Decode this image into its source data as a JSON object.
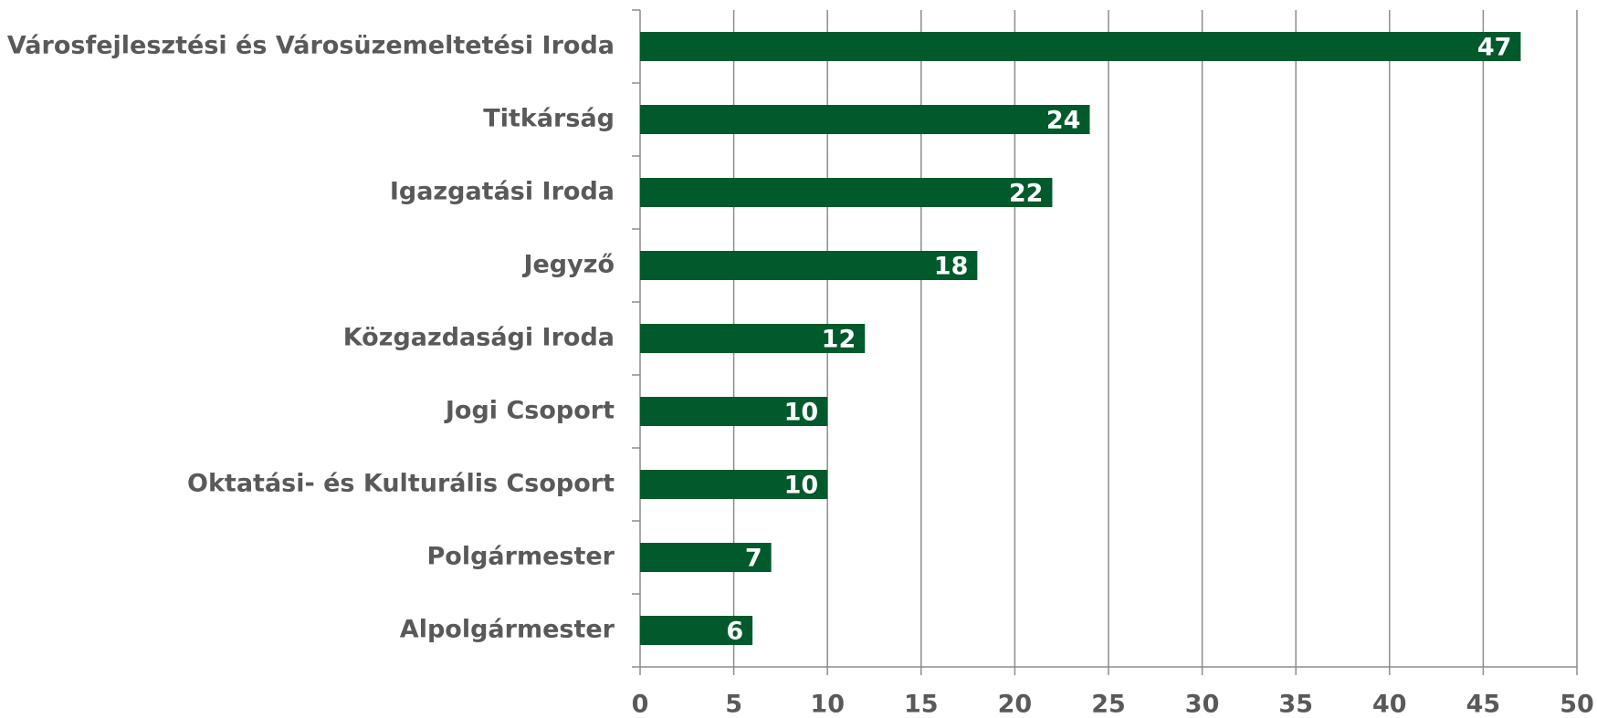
{
  "chart_data": {
    "type": "barh",
    "categories": [
      "Városfejlesztési és Városüzemeltetési Iroda",
      "Titkárság",
      "Igazgatási Iroda",
      "Jegyző",
      "Közgazdasági Iroda",
      "Jogi Csoport",
      "Oktatási- és Kulturális Csoport",
      "Polgármester",
      "Alpolgármester"
    ],
    "values": [
      47,
      24,
      22,
      18,
      12,
      10,
      10,
      7,
      6
    ],
    "color": "#005a2b",
    "xlim": [
      0,
      50
    ],
    "xticks": [
      0,
      5,
      10,
      15,
      20,
      25,
      30,
      35,
      40,
      45,
      50
    ],
    "grid": true
  }
}
